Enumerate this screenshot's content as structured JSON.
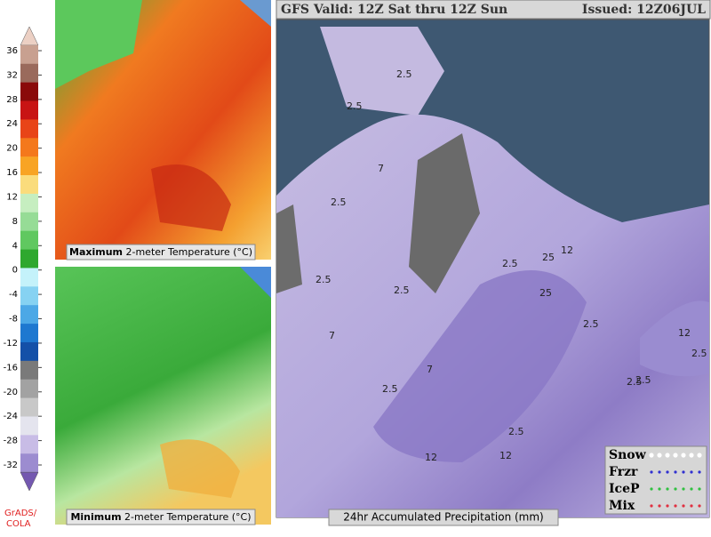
{
  "header": {
    "title": "GFS Valid: 12Z Sat thru 12Z Sun",
    "issued": "Issued: 12Z06JUL"
  },
  "colorbar": {
    "ticks": [
      36,
      32,
      28,
      24,
      20,
      16,
      12,
      8,
      4,
      0,
      -4,
      -8,
      -12,
      -16,
      -20,
      -24,
      -28,
      -32
    ],
    "colors": [
      "#ecd0c4",
      "#c8a090",
      "#9a6a5c",
      "#8a0a0a",
      "#c81414",
      "#e84418",
      "#f4781c",
      "#f8a424",
      "#fadc7c",
      "#c6eec0",
      "#96dc96",
      "#60c860",
      "#2ea82e",
      "#c4f2fa",
      "#86d2f2",
      "#4ca8e6",
      "#1e78d0",
      "#1450a8",
      "#7a7a7a",
      "#a2a2a2",
      "#c8c8c8",
      "#e4e4ee",
      "#c8bce6",
      "#9c8cd0",
      "#7458b0"
    ],
    "credit": "GrADS/\nCOLA"
  },
  "panels": {
    "max_caption": {
      "bold": "Maximum",
      "rest": "2-meter Temperature (°C)"
    },
    "min_caption": {
      "bold": "Minimum",
      "rest": "2-meter Temperature (°C)"
    },
    "precip_caption": "24hr Accumulated Precipitation (mm)"
  },
  "contour_labels": [
    "2.5",
    "2.5",
    "7",
    "2.5",
    "2.5",
    "7",
    "2.5",
    "2.5",
    "7",
    "2.5",
    "25",
    "12",
    "25",
    "2.5",
    "12",
    "2.5",
    "12",
    "2.5",
    "2.5",
    "12",
    "2.5"
  ],
  "legend": [
    "Snow",
    "Frzr",
    "IceP",
    "Mix"
  ]
}
